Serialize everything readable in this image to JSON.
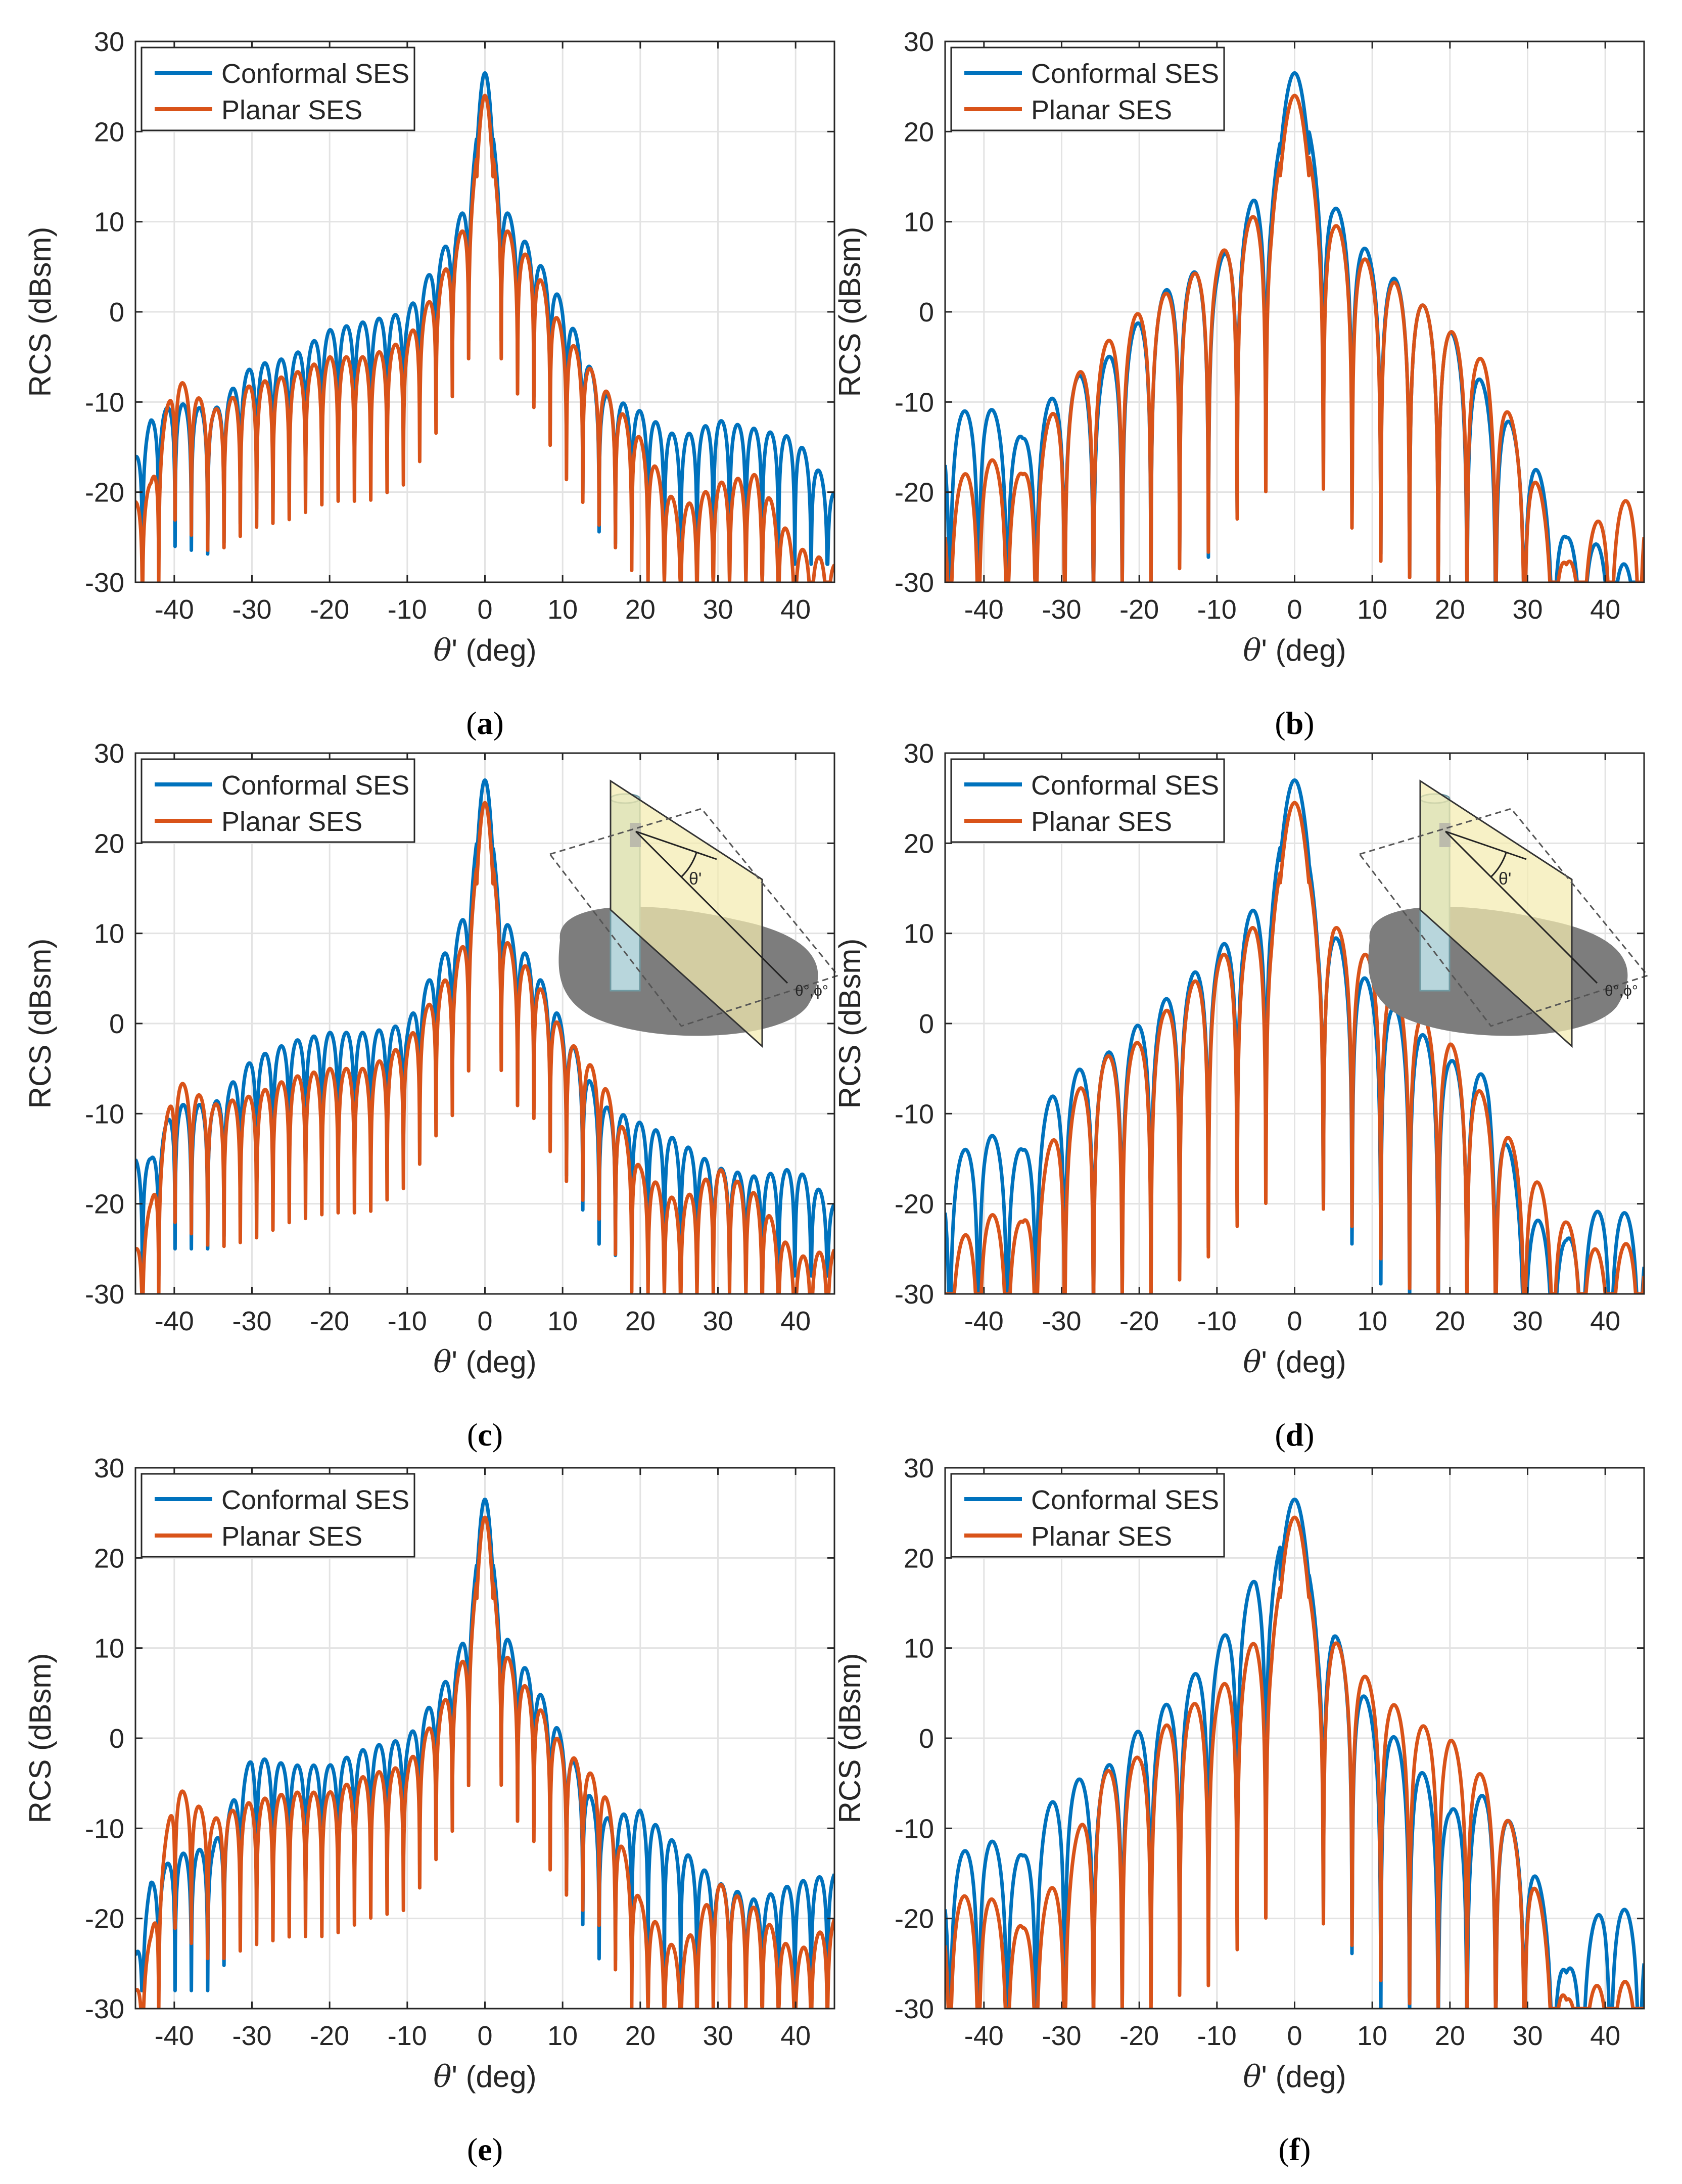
{
  "figure": {
    "colors": {
      "conformal": "#0072BD",
      "planar": "#D95319",
      "grid": "#e3e3e3",
      "axis": "#262626"
    }
  },
  "chart_data": [
    {
      "type": "line",
      "panel": "(a)",
      "caption_letter": "a",
      "xlabel_symbol": "θ",
      "xlabel_rest": "' (deg)",
      "ylabel": "RCS (dBsm)",
      "xlim": [
        -45,
        45
      ],
      "ylim": [
        -30,
        30
      ],
      "xticks": [
        -40,
        -30,
        -20,
        -10,
        0,
        10,
        20,
        30,
        40
      ],
      "yticks": [
        -30,
        -20,
        -10,
        0,
        10,
        20,
        30
      ],
      "legend": [
        "Conformal SES",
        "Planar SES"
      ],
      "legend_position": "top-left",
      "has_inset": false,
      "series": [
        {
          "name": "Conformal SES",
          "peak": 26.5,
          "floor": -28,
          "lobe_width": 2.1,
          "decay": 0.4,
          "x": [
            -45,
            -43,
            -40,
            -35,
            -30,
            -25,
            -20,
            -15,
            -10,
            -6,
            -4,
            -2,
            0,
            2,
            4,
            6,
            10,
            15,
            20,
            25,
            30,
            35,
            40,
            45
          ],
          "env": [
            -16,
            -12,
            -10,
            -11,
            -6,
            -5,
            -2,
            -1,
            0,
            6,
            9,
            13,
            26.5,
            13,
            9,
            7,
            1,
            -9,
            -11,
            -14,
            -12,
            -13,
            -14,
            -20
          ]
        },
        {
          "name": "Planar SES",
          "peak": 24,
          "floor": -30,
          "lobe_width": 2.1,
          "decay": 0.4,
          "x": [
            -45,
            -43,
            -40,
            -35,
            -30,
            -25,
            -20,
            -15,
            -10,
            -6,
            -4,
            -2,
            0,
            2,
            4,
            6,
            10,
            15,
            20,
            25,
            30,
            35,
            40,
            45
          ],
          "env": [
            -21,
            -19,
            -7,
            -11,
            -8,
            -7,
            -5,
            -5,
            -3,
            3,
            7,
            11,
            24,
            11,
            7,
            6,
            -2,
            -8,
            -14,
            -22,
            -19,
            -18,
            -26,
            -28
          ]
        }
      ]
    },
    {
      "type": "line",
      "panel": "(b)",
      "caption_letter": "b",
      "xlabel_symbol": "θ",
      "xlabel_rest": "' (deg)",
      "ylabel": "RCS (dBsm)",
      "xlim": [
        -45,
        45
      ],
      "ylim": [
        -30,
        30
      ],
      "xticks": [
        -40,
        -30,
        -20,
        -10,
        0,
        10,
        20,
        30,
        40
      ],
      "yticks": [
        -30,
        -20,
        -10,
        0,
        10,
        20,
        30
      ],
      "legend": [
        "Conformal SES",
        "Planar SES"
      ],
      "legend_position": "top-left",
      "has_inset": false,
      "series": [
        {
          "name": "Conformal SES",
          "peak": 26.5,
          "floor": -30,
          "lobe_width": 3.7,
          "decay": 0.8,
          "x": [
            -45,
            -40,
            -35,
            -30,
            -25,
            -20,
            -15,
            -10,
            -5,
            -3,
            0,
            3,
            5,
            10,
            15,
            20,
            25,
            30,
            35,
            40,
            45
          ],
          "env": [
            -12,
            -10,
            -14,
            -8,
            -6,
            -1,
            4,
            5,
            13,
            14,
            26.5,
            16,
            12,
            6,
            2,
            -2,
            -9,
            -15,
            -25,
            -26,
            -30
          ]
        },
        {
          "name": "Planar SES",
          "peak": 24,
          "floor": -30,
          "lobe_width": 3.7,
          "decay": 0.8,
          "x": [
            -45,
            -40,
            -35,
            -30,
            -25,
            -20,
            -15,
            -10,
            -5,
            -3,
            0,
            3,
            5,
            10,
            15,
            20,
            25,
            30,
            35,
            40,
            45
          ],
          "env": [
            -20,
            -16,
            -18,
            -9,
            -4,
            0,
            3,
            6,
            11,
            12,
            24,
            13,
            10,
            5,
            2,
            -2,
            -6,
            -16,
            -28,
            -22,
            -20
          ]
        }
      ]
    },
    {
      "type": "line",
      "panel": "(c)",
      "caption_letter": "c",
      "xlabel_symbol": "θ",
      "xlabel_rest": "' (deg)",
      "ylabel": "RCS (dBsm)",
      "xlim": [
        -45,
        45
      ],
      "ylim": [
        -30,
        30
      ],
      "xticks": [
        -40,
        -30,
        -20,
        -10,
        0,
        10,
        20,
        30,
        40
      ],
      "yticks": [
        -30,
        -20,
        -10,
        0,
        10,
        20,
        30
      ],
      "legend": [
        "Conformal SES",
        "Planar SES"
      ],
      "legend_position": "top-left",
      "has_inset": true,
      "inset_labels": {
        "angle": "θ'",
        "incidence": "θ°,ϕ°"
      },
      "series": [
        {
          "name": "Conformal SES",
          "peak": 27,
          "floor": -28,
          "lobe_width": 2.1,
          "decay": 0.4,
          "x": [
            -45,
            -43,
            -40,
            -35,
            -30,
            -25,
            -20,
            -15,
            -10,
            -6,
            -4,
            -2,
            0,
            2,
            4,
            6,
            10,
            15,
            20,
            25,
            30,
            35,
            40,
            45
          ],
          "env": [
            -15,
            -15,
            -9,
            -9,
            -4,
            -2,
            -1,
            -1,
            0,
            7,
            9,
            14,
            27,
            13,
            9,
            7,
            0,
            -9,
            -11,
            -13,
            -16,
            -17,
            -16,
            -20
          ]
        },
        {
          "name": "Planar SES",
          "peak": 24.5,
          "floor": -30,
          "lobe_width": 2.1,
          "decay": 0.4,
          "x": [
            -45,
            -43,
            -40,
            -35,
            -30,
            -25,
            -20,
            -15,
            -10,
            -6,
            -4,
            -2,
            0,
            2,
            4,
            6,
            10,
            15,
            20,
            25,
            30,
            35,
            40,
            45
          ],
          "env": [
            -25,
            -20,
            -6,
            -9,
            -8,
            -6,
            -5,
            -5,
            -2,
            4,
            6,
            11,
            24.5,
            11,
            7,
            6,
            -1,
            -6,
            -16,
            -20,
            -16,
            -19,
            -26,
            -25
          ]
        }
      ]
    },
    {
      "type": "line",
      "panel": "(d)",
      "caption_letter": "d",
      "xlabel_symbol": "θ",
      "xlabel_rest": "' (deg)",
      "ylabel": "RCS (dBsm)",
      "xlim": [
        -45,
        45
      ],
      "ylim": [
        -30,
        30
      ],
      "xticks": [
        -40,
        -30,
        -20,
        -10,
        0,
        10,
        20,
        30,
        40
      ],
      "yticks": [
        -30,
        -20,
        -10,
        0,
        10,
        20,
        30
      ],
      "legend": [
        "Conformal SES",
        "Planar SES"
      ],
      "legend_position": "top-left",
      "has_inset": true,
      "inset_labels": {
        "angle": "θ'",
        "incidence": "θ°,ϕ°"
      },
      "series": [
        {
          "name": "Conformal SES",
          "peak": 27,
          "floor": -30,
          "lobe_width": 3.7,
          "decay": 0.8,
          "x": [
            -45,
            -40,
            -35,
            -30,
            -25,
            -20,
            -15,
            -10,
            -5,
            -3,
            0,
            3,
            5,
            10,
            15,
            20,
            25,
            30,
            35,
            40,
            45
          ],
          "env": [
            -16,
            -12,
            -14,
            -6,
            -4,
            0,
            4,
            8,
            13,
            15,
            27,
            12,
            10,
            4,
            0,
            -4,
            -6,
            -21,
            -24,
            -20,
            -22
          ]
        },
        {
          "name": "Planar SES",
          "peak": 24.5,
          "floor": -30,
          "lobe_width": 3.7,
          "decay": 0.8,
          "x": [
            -45,
            -40,
            -35,
            -30,
            -25,
            -20,
            -15,
            -10,
            -5,
            -3,
            0,
            3,
            5,
            10,
            15,
            20,
            25,
            30,
            35,
            40,
            45
          ],
          "env": [
            -26,
            -21,
            -22,
            -10,
            -4,
            -2,
            3,
            7,
            11,
            12,
            24.5,
            11,
            11,
            7,
            2,
            -2,
            -9,
            -16,
            -22,
            -26,
            -23
          ]
        }
      ]
    },
    {
      "type": "line",
      "panel": "(e)",
      "caption_letter": "e",
      "xlabel_symbol": "θ",
      "xlabel_rest": "' (deg)",
      "ylabel": "RCS (dBsm)",
      "xlim": [
        -45,
        45
      ],
      "ylim": [
        -30,
        30
      ],
      "xticks": [
        -40,
        -30,
        -20,
        -10,
        0,
        10,
        20,
        30,
        40
      ],
      "yticks": [
        -30,
        -20,
        -10,
        0,
        10,
        20,
        30
      ],
      "legend": [
        "Conformal SES",
        "Planar SES"
      ],
      "legend_position": "top-left",
      "has_inset": false,
      "series": [
        {
          "name": "Conformal SES",
          "peak": 26.5,
          "floor": -28,
          "lobe_width": 2.1,
          "decay": 0.4,
          "x": [
            -45,
            -43,
            -40,
            -35,
            -30,
            -25,
            -20,
            -15,
            -10,
            -6,
            -4,
            -2,
            0,
            2,
            4,
            6,
            10,
            15,
            20,
            25,
            30,
            35,
            40,
            45
          ],
          "env": [
            -24,
            -16,
            -13,
            -12,
            -2,
            -3,
            -3,
            -1,
            0,
            5,
            8,
            13,
            26.5,
            13,
            9,
            7,
            0,
            -9,
            -8,
            -12,
            -16,
            -18,
            -16,
            -15
          ]
        },
        {
          "name": "Planar SES",
          "peak": 24.5,
          "floor": -30,
          "lobe_width": 2.1,
          "decay": 0.4,
          "x": [
            -45,
            -43,
            -40,
            -35,
            -30,
            -25,
            -20,
            -15,
            -10,
            -6,
            -4,
            -2,
            0,
            2,
            4,
            6,
            10,
            15,
            20,
            25,
            30,
            35,
            40,
            45
          ],
          "env": [
            -28,
            -22,
            -5,
            -9,
            -7,
            -6,
            -6,
            -4,
            -3,
            3,
            6,
            11,
            24.5,
            11,
            7,
            5,
            -1,
            -5,
            -18,
            -24,
            -16,
            -19,
            -24,
            -20
          ]
        }
      ]
    },
    {
      "type": "line",
      "panel": "(f)",
      "caption_letter": "f",
      "xlabel_symbol": "θ",
      "xlabel_rest": "' (deg)",
      "ylabel": "RCS (dBsm)",
      "xlim": [
        -45,
        45
      ],
      "ylim": [
        -30,
        30
      ],
      "xticks": [
        -40,
        -30,
        -20,
        -10,
        0,
        10,
        20,
        30,
        40
      ],
      "yticks": [
        -30,
        -20,
        -10,
        0,
        10,
        20,
        30
      ],
      "legend": [
        "Conformal SES",
        "Planar SES"
      ],
      "legend_position": "top-left",
      "has_inset": false,
      "series": [
        {
          "name": "Conformal SES",
          "peak": 26.5,
          "floor": -30,
          "lobe_width": 3.7,
          "decay": 0.8,
          "x": [
            -45,
            -40,
            -35,
            -30,
            -25,
            -20,
            -15,
            -10,
            -5,
            -3,
            0,
            3,
            5,
            10,
            15,
            20,
            25,
            30,
            35,
            40,
            45
          ],
          "env": [
            -14,
            -11,
            -13,
            -5,
            -4,
            1,
            5,
            10,
            18,
            18,
            26.5,
            13,
            12,
            3,
            -2,
            -8,
            -6,
            -12,
            -26,
            -18,
            -20
          ]
        },
        {
          "name": "Planar SES",
          "peak": 24.5,
          "floor": -30,
          "lobe_width": 3.7,
          "decay": 0.8,
          "x": [
            -45,
            -40,
            -35,
            -30,
            -25,
            -20,
            -15,
            -10,
            -5,
            -3,
            0,
            3,
            5,
            10,
            15,
            20,
            25,
            30,
            35,
            40,
            45
          ],
          "env": [
            -18,
            -17,
            -21,
            -15,
            -4,
            -2,
            3,
            5,
            11,
            12,
            24.5,
            11,
            11,
            6,
            2,
            0,
            -5,
            -13,
            -29,
            -27,
            -27
          ]
        }
      ]
    }
  ]
}
